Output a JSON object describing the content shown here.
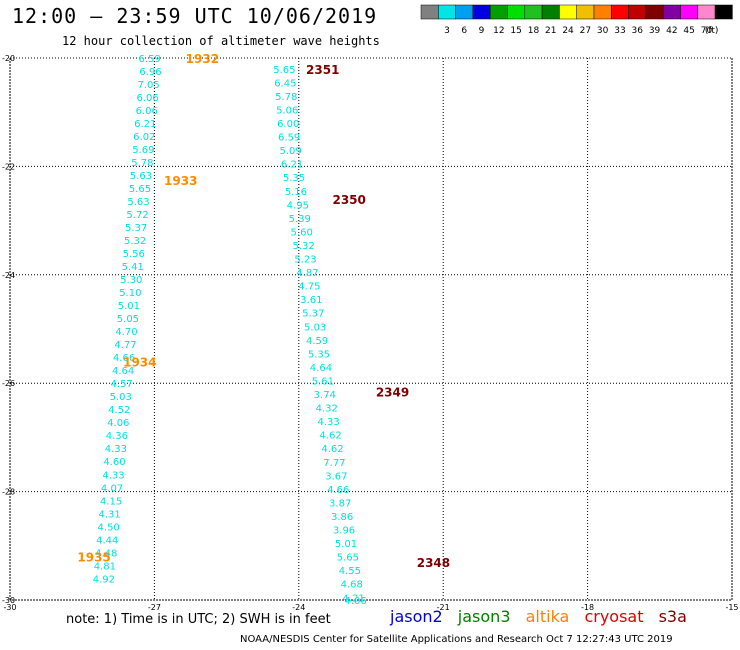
{
  "header": {
    "title": "12:00 — 23:59 UTC 10/06/2019",
    "subtitle": "12 hour collection of altimeter wave heights"
  },
  "color_scale": {
    "unit": "(ft)",
    "bins": [
      {
        "label": "",
        "color": "#808080"
      },
      {
        "label": "3",
        "color": "#00e6e6"
      },
      {
        "label": "6",
        "color": "#00a0f0"
      },
      {
        "label": "9",
        "color": "#0000e0"
      },
      {
        "label": "12",
        "color": "#00a000"
      },
      {
        "label": "15",
        "color": "#00e000"
      },
      {
        "label": "18",
        "color": "#20c020"
      },
      {
        "label": "21",
        "color": "#008000"
      },
      {
        "label": "24",
        "color": "#ffff00"
      },
      {
        "label": "27",
        "color": "#f0c000"
      },
      {
        "label": "30",
        "color": "#ff8000"
      },
      {
        "label": "33",
        "color": "#ff0000"
      },
      {
        "label": "36",
        "color": "#c00000"
      },
      {
        "label": "39",
        "color": "#800000"
      },
      {
        "label": "42",
        "color": "#8000a0"
      },
      {
        "label": "45",
        "color": "#ff00ff"
      },
      {
        "label": "70",
        "color": "#ff88cc"
      },
      {
        "label": "",
        "color": "#000000"
      }
    ]
  },
  "footer": {
    "note": "note:  1) Time is in UTC;  2) SWH is in feet",
    "satellites": [
      {
        "name": "jason2",
        "color": "#0000e0"
      },
      {
        "name": "jason3",
        "color": "#008000"
      },
      {
        "name": "altika",
        "color": "#ff8000"
      },
      {
        "name": "cryosat",
        "color": "#e00000"
      },
      {
        "name": "s3a",
        "color": "#800000"
      }
    ],
    "credit": "NOAA/NESDIS Center for Satellite Applications and Research    Oct  7 12:27:43 UTC 2019"
  },
  "chart_data": {
    "type": "scatter",
    "title": "12 hour collection of altimeter wave heights",
    "xlim": [
      -30,
      -15
    ],
    "ylim": [
      -30,
      -20
    ],
    "x_ticks": [
      "-30",
      "-27",
      "-24",
      "-21",
      "-18",
      "-15"
    ],
    "y_ticks": [
      "-20",
      "-22",
      "-24",
      "-26",
      "-28",
      "-30"
    ],
    "grid": true,
    "series": [
      {
        "name": "altika",
        "color": "#00e0e0",
        "x": [
          -27.1,
          -27.08,
          -27.12,
          -27.14,
          -27.16,
          -27.19,
          -27.21,
          -27.23,
          -27.25,
          -27.28,
          -27.3,
          -27.33,
          -27.35,
          -27.38,
          -27.4,
          -27.43,
          -27.45,
          -27.48,
          -27.5,
          -27.53,
          -27.55,
          -27.58,
          -27.6,
          -27.63,
          -27.65,
          -27.68,
          -27.7,
          -27.73,
          -27.75,
          -27.78,
          -27.8,
          -27.83,
          -27.85,
          -27.88,
          -27.9,
          -27.93,
          -27.95,
          -27.98,
          -28.0,
          -28.03,
          -28.05,
          -28.08,
          -28.1,
          -28.13,
          -28.15,
          -28.18
        ],
        "y": [
          -20.0,
          -20.24,
          -20.48,
          -20.72,
          -20.96,
          -21.2,
          -21.44,
          -21.68,
          -21.92,
          -22.16,
          -22.4,
          -22.64,
          -22.88,
          -23.12,
          -23.36,
          -23.6,
          -23.84,
          -24.08,
          -24.32,
          -24.56,
          -24.8,
          -25.04,
          -25.28,
          -25.52,
          -25.76,
          -26.0,
          -26.24,
          -26.48,
          -26.72,
          -26.96,
          -27.2,
          -27.44,
          -27.68,
          -27.92,
          -28.16,
          -28.4,
          -28.64,
          -28.88,
          -29.12,
          -29.36,
          -29.6,
          -29.84,
          -29.97,
          -30.0,
          -30.0,
          -30.0
        ],
        "labels": [
          "6.59",
          "6.96",
          "7.05",
          "6.06",
          "6.06",
          "6.21",
          "6.02",
          "5.69",
          "5.78",
          "5.63",
          "5.65",
          "5.63",
          "5.72",
          "5.37",
          "5.32",
          "5.56",
          "5.41",
          "5.30",
          "5.10",
          "5.01",
          "5.05",
          "4.70",
          "4.77",
          "4.66",
          "4.64",
          "4.57",
          "5.03",
          "4.52",
          "4.06",
          "4.36",
          "4.33",
          "4.60",
          "4.33",
          "4.07",
          "4.15",
          "4.31",
          "4.50",
          "4.44",
          "4.48",
          "4.81",
          "4.92",
          "",
          "",
          "",
          "",
          ""
        ]
      },
      {
        "name": "s3a",
        "color": "#00e0e0",
        "x": [
          -24.3,
          -24.28,
          -24.26,
          -24.24,
          -24.22,
          -24.2,
          -24.17,
          -24.14,
          -24.1,
          -24.06,
          -24.02,
          -23.98,
          -23.94,
          -23.9,
          -23.86,
          -23.82,
          -23.78,
          -23.74,
          -23.7,
          -23.66,
          -23.62,
          -23.58,
          -23.54,
          -23.5,
          -23.46,
          -23.42,
          -23.38,
          -23.34,
          -23.3,
          -23.26,
          -23.22,
          -23.18,
          -23.14,
          -23.1,
          -23.06,
          -23.02,
          -22.98,
          -22.94,
          -22.9,
          -22.86,
          -22.82
        ],
        "y": [
          -20.2,
          -20.45,
          -20.7,
          -20.95,
          -21.2,
          -21.45,
          -21.7,
          -21.95,
          -22.2,
          -22.45,
          -22.7,
          -22.95,
          -23.2,
          -23.45,
          -23.7,
          -23.95,
          -24.2,
          -24.45,
          -24.7,
          -24.95,
          -25.2,
          -25.45,
          -25.7,
          -25.95,
          -26.2,
          -26.45,
          -26.7,
          -26.95,
          -27.2,
          -27.45,
          -27.7,
          -27.95,
          -28.2,
          -28.45,
          -28.7,
          -28.95,
          -29.2,
          -29.45,
          -29.7,
          -29.95,
          -30.0
        ],
        "labels": [
          "5.65",
          "6.45",
          "5.78",
          "5.06",
          "6.00",
          "6.59",
          "5.09",
          "6.21",
          "5.35",
          "5.16",
          "4.95",
          "5.39",
          "5.60",
          "5.32",
          "5.23",
          "4.87",
          "4.75",
          "3.61",
          "5.37",
          "5.03",
          "4.59",
          "5.35",
          "4.64",
          "5.61",
          "3.74",
          "4.32",
          "4.33",
          "4.62",
          "4.62",
          "7.77",
          "3.67",
          "4.66",
          "3.87",
          "3.86",
          "3.96",
          "5.01",
          "5.65",
          "4.55",
          "4.68",
          "4.21",
          "4.06"
        ]
      }
    ],
    "time_annotations": [
      {
        "text": "1932",
        "x": -26.35,
        "y": -20.0,
        "color": "#ff8c00"
      },
      {
        "text": "1933",
        "x": -26.8,
        "y": -22.25,
        "color": "#ff8c00"
      },
      {
        "text": "1934",
        "x": -27.65,
        "y": -25.6,
        "color": "#ff8c00"
      },
      {
        "text": "1935",
        "x": -28.6,
        "y": -29.2,
        "color": "#ff8c00"
      },
      {
        "text": "2351",
        "x": -23.85,
        "y": -20.2,
        "color": "#800000"
      },
      {
        "text": "2350",
        "x": -23.3,
        "y": -22.6,
        "color": "#800000"
      },
      {
        "text": "2349",
        "x": -22.4,
        "y": -26.15,
        "color": "#800000"
      },
      {
        "text": "2348",
        "x": -21.55,
        "y": -29.3,
        "color": "#800000"
      }
    ]
  }
}
